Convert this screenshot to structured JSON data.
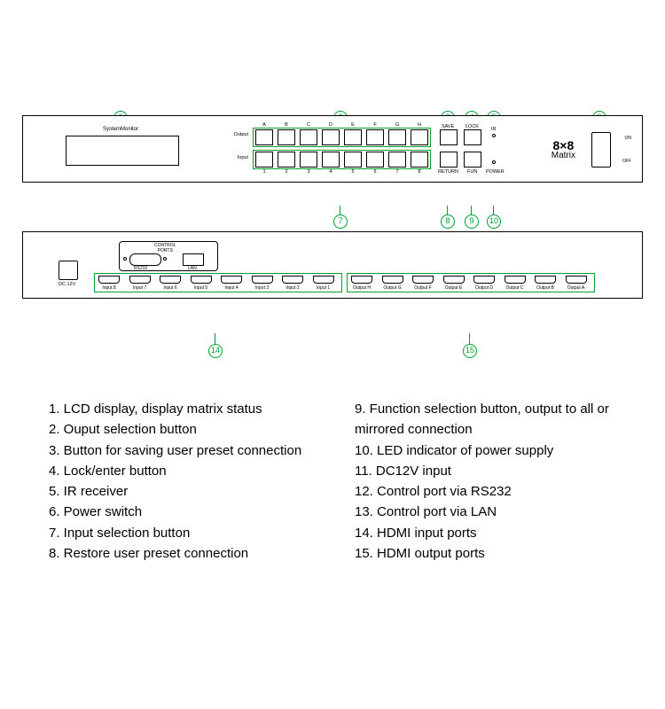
{
  "colors": {
    "accent": "#00a030",
    "line": "#000000",
    "bg": "#ffffff"
  },
  "front": {
    "lcd_label": "SystemMonitor",
    "row_output": "Output",
    "row_input": "Input",
    "output_cols": [
      "A",
      "B",
      "C",
      "D",
      "E",
      "F",
      "G",
      "H"
    ],
    "input_cols": [
      "1",
      "2",
      "3",
      "4",
      "5",
      "6",
      "7",
      "8"
    ],
    "ctl_save": "SAVE",
    "ctl_lock": "LOCK",
    "ctl_return": "RETURN",
    "ctl_fun": "FUN",
    "ir": "IR",
    "power": "POWER",
    "brand_top": "8×8",
    "brand_sub": "Matrix",
    "sw_on": "ON",
    "sw_off": "OFF"
  },
  "rear": {
    "dc": "DC 12V",
    "ctrl_ports": "CONTROL\nPORTS",
    "rs232": "RS232",
    "lan": "LAN",
    "inputs": [
      "Input 8",
      "Input 7",
      "Input 6",
      "Input 5",
      "Input 4",
      "Input 3",
      "Input 2",
      "Input 1"
    ],
    "outputs": [
      "Output H",
      "Output G",
      "Output F",
      "Output E",
      "Output D",
      "Output C",
      "Output B",
      "Output A"
    ]
  },
  "legend_left": [
    "1. LCD display, display matrix status",
    "2. Ouput selection button",
    "3. Button for saving user preset connection",
    "4. Lock/enter button",
    "5. IR receiver",
    "6. Power switch",
    "7. Input selection button",
    "8. Restore user preset connection"
  ],
  "legend_right": [
    "9. Function selection button, output to all or mirrored connection",
    "10. LED indicator of power supply",
    "11. DC12V input",
    "12. Control port via RS232",
    "13. Control port via LAN",
    "14. HDMI input ports",
    "15. HDMI output ports"
  ]
}
